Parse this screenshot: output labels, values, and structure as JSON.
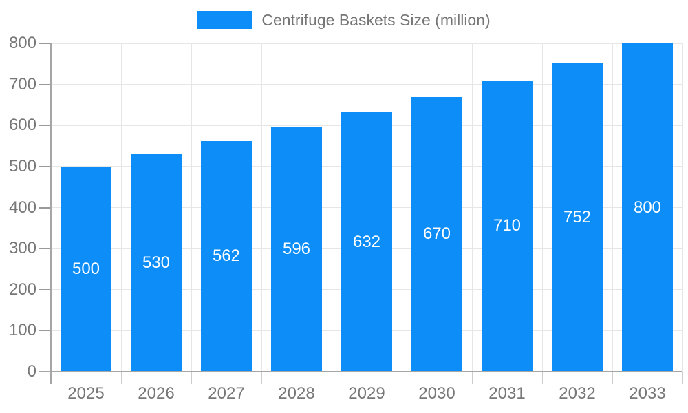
{
  "legend": {
    "label": "Centrifuge Baskets Size (million)"
  },
  "colors": {
    "bar": "#0D8DF7",
    "grid_line": "#e6e6e6",
    "axis_line": "#a6a6a6",
    "y_tick": "#999999",
    "x_tick": "#cccccc",
    "axis_label_text": "#777777",
    "legend_text": "#757575",
    "value_label_text": "#ffffff",
    "background": "#ffffff"
  },
  "chart_data": {
    "type": "bar",
    "title": "",
    "series_name": "Centrifuge Baskets Size (million)",
    "legend_entries": [
      "Centrifuge Baskets Size (million)"
    ],
    "legend_position": "top",
    "categories": [
      "2025",
      "2026",
      "2027",
      "2028",
      "2029",
      "2030",
      "2031",
      "2032",
      "2033"
    ],
    "values": [
      500,
      530,
      562,
      596,
      632,
      670,
      710,
      752,
      800
    ],
    "value_labels_shown": true,
    "xlabel": "",
    "ylabel": "",
    "ylim": [
      0,
      800
    ],
    "ytick_interval": 100,
    "yticks": [
      0,
      100,
      200,
      300,
      400,
      500,
      600,
      700,
      800
    ],
    "grid": true
  }
}
